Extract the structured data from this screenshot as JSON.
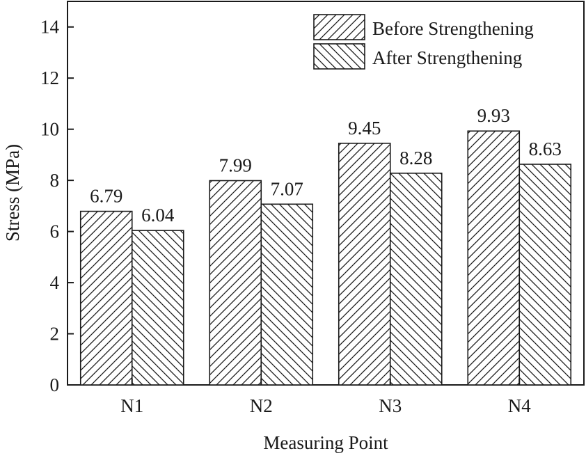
{
  "chart_data": {
    "type": "bar",
    "title": "",
    "xlabel": "Measuring Point",
    "ylabel": "Stress (MPa)",
    "ylim": [
      0,
      15
    ],
    "yticks": [
      0,
      2,
      4,
      6,
      8,
      10,
      12,
      14
    ],
    "grid": false,
    "legend_position": "top-right",
    "categories": [
      "N1",
      "N2",
      "N3",
      "N4"
    ],
    "series": [
      {
        "name": "Before Strengthening",
        "hatch": "forward-diagonal",
        "values": [
          6.79,
          7.99,
          9.45,
          9.93
        ],
        "labels": [
          "6.79",
          "7.99",
          "9.45",
          "9.93"
        ]
      },
      {
        "name": "After Strengthening",
        "hatch": "back-diagonal",
        "values": [
          6.04,
          7.07,
          8.28,
          8.63
        ],
        "labels": [
          "6.04",
          "7.07",
          "8.28",
          "8.63"
        ]
      }
    ]
  },
  "colors": {
    "stroke": "#1a1a1a",
    "background": "#ffffff"
  }
}
